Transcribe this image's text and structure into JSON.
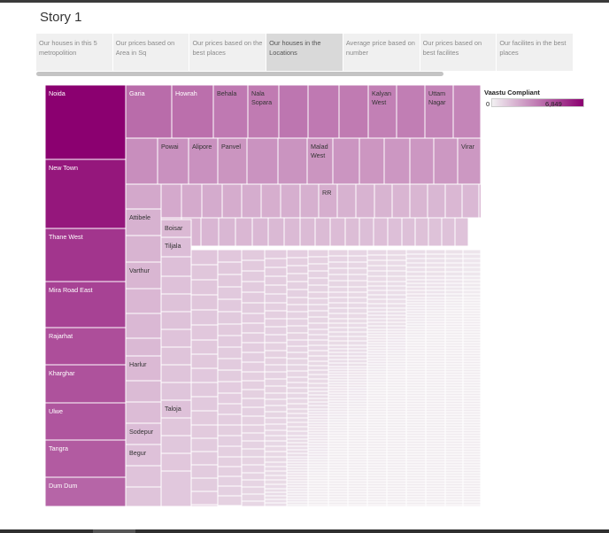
{
  "story": {
    "title": "Story 1"
  },
  "tabs": [
    {
      "label": "Our houses in this 5 metropolition",
      "active": false
    },
    {
      "label": "Our prices based on Area in Sq",
      "active": false
    },
    {
      "label": "Our prices based on the best places",
      "active": false
    },
    {
      "label": "Our houses in the Locations",
      "active": true
    },
    {
      "label": "Average price based on number",
      "active": false
    },
    {
      "label": "Our prices based on best facilites",
      "active": false
    },
    {
      "label": "Our facilites in the best places",
      "active": false
    }
  ],
  "chart_data": {
    "type": "treemap",
    "color_field": "Vaastu Compliant",
    "color_range": [
      0,
      6849
    ],
    "colors": {
      "low": "#f2f0f2",
      "high": "#8b0070"
    },
    "legend": {
      "title": "Vaastu Compliant",
      "min_label": "0",
      "max_label": "6,849",
      "placement": "top-right"
    },
    "labelled_cells": [
      {
        "label": "Noida",
        "value": 6849
      },
      {
        "label": "New Town",
        "value": 6100
      },
      {
        "label": "Thane West",
        "value": 5100
      },
      {
        "label": "Mira Road East",
        "value": 4700
      },
      {
        "label": "Rajarhat",
        "value": 4300
      },
      {
        "label": "Kharghar",
        "value": 4200
      },
      {
        "label": "Ulwe",
        "value": 4100
      },
      {
        "label": "Tangra",
        "value": 3900
      },
      {
        "label": "Dum Dum",
        "value": 3600
      },
      {
        "label": "Garia",
        "value": 3400
      },
      {
        "label": "Howrah",
        "value": 3300
      },
      {
        "label": "Behala",
        "value": 3000
      },
      {
        "label": "Nala Sopara",
        "value": 2950
      },
      {
        "label": "Kalyan West",
        "value": 2800
      },
      {
        "label": "Uttam Nagar",
        "value": 2700
      },
      {
        "label": "Powai",
        "value": 2300
      },
      {
        "label": "Alipore",
        "value": 2300
      },
      {
        "label": "Panvel",
        "value": 2200
      },
      {
        "label": "Malad West",
        "value": 2200
      },
      {
        "label": "Virar",
        "value": 2100
      },
      {
        "label": "RR",
        "value": 1500
      },
      {
        "label": "Attibele",
        "value": 1400
      },
      {
        "label": "Boisar",
        "value": 1200
      },
      {
        "label": "Tiljala",
        "value": 1100
      },
      {
        "label": "Varthur",
        "value": 1300
      },
      {
        "label": "Harlur",
        "value": 1200
      },
      {
        "label": "Taloja",
        "value": 1000
      },
      {
        "label": "Sodepur",
        "value": 1100
      },
      {
        "label": "Begur",
        "value": 1000
      }
    ]
  }
}
